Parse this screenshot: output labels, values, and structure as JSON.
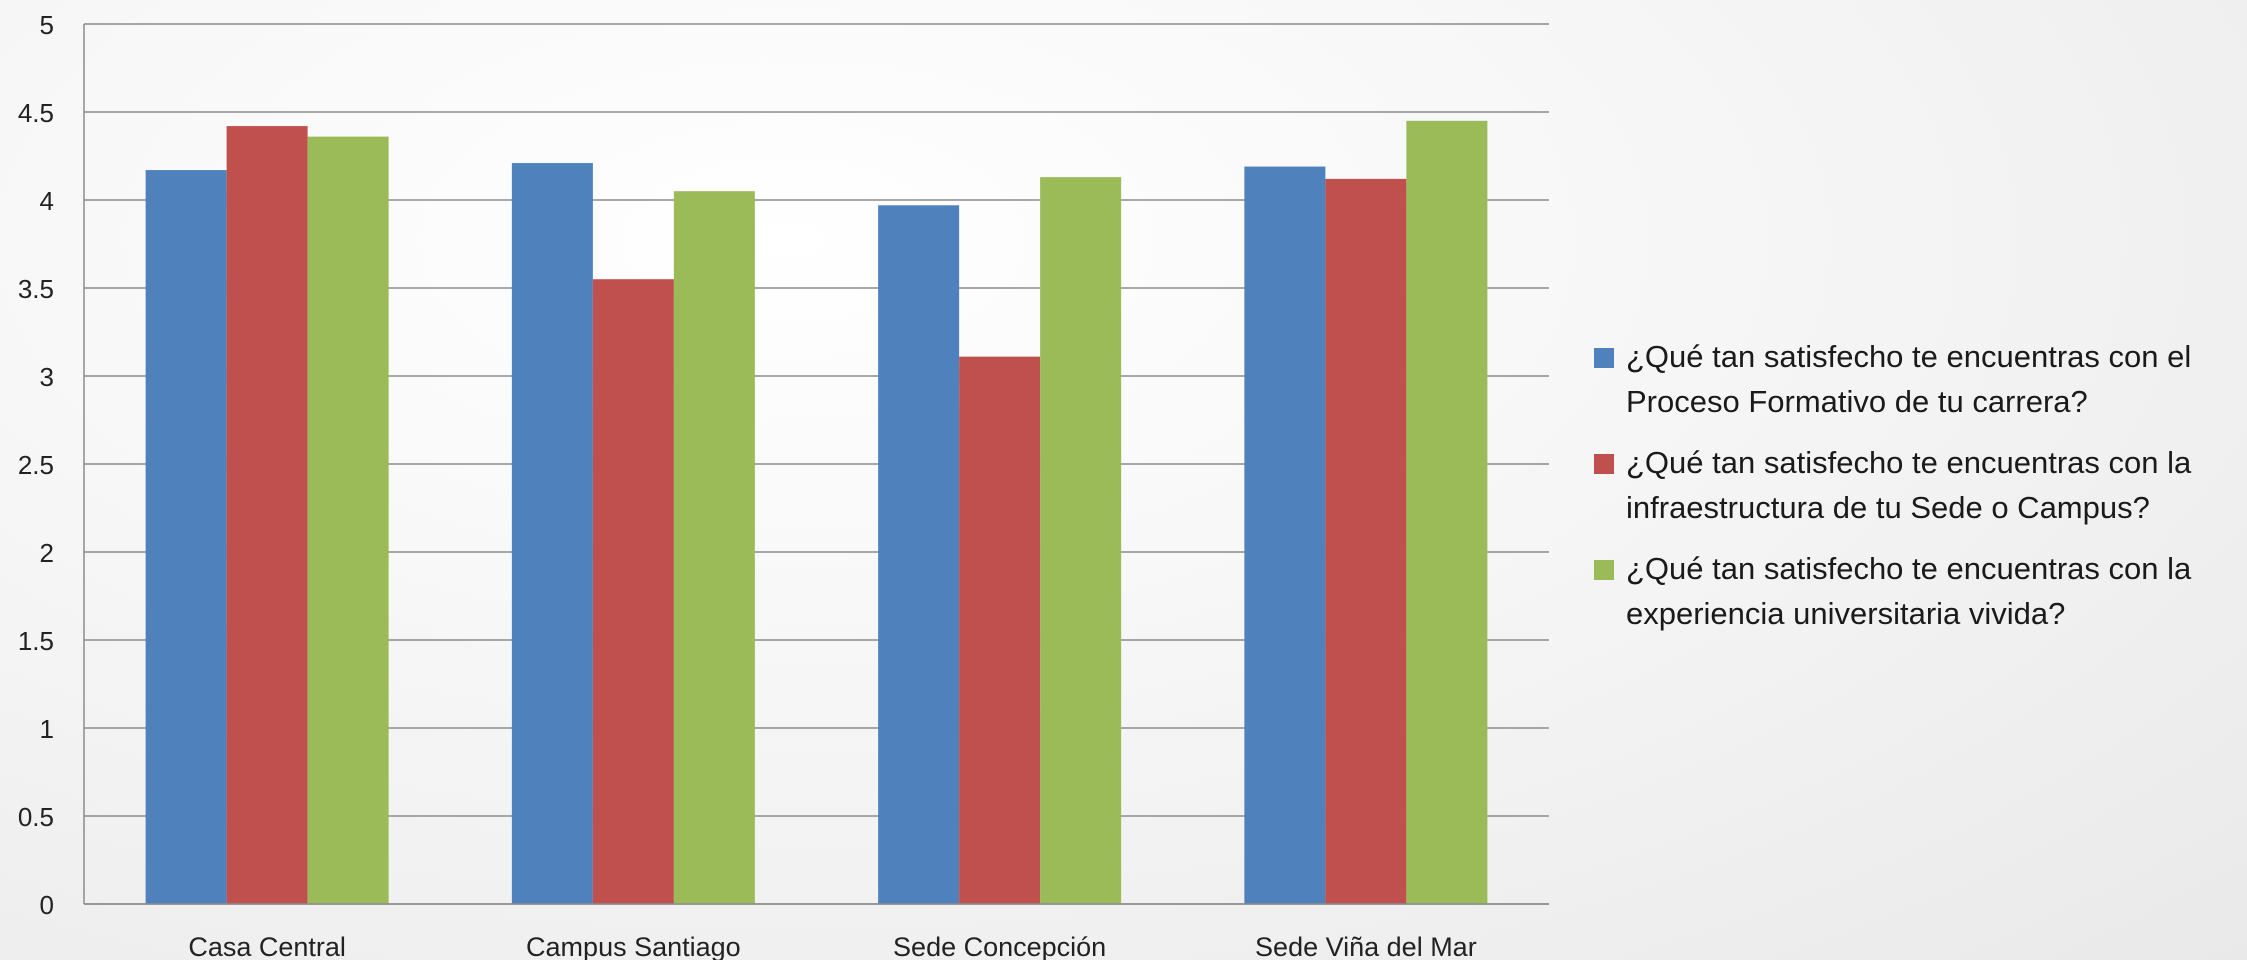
{
  "chart_data": {
    "type": "bar",
    "title": "",
    "xlabel": "",
    "ylabel": "",
    "ylim": [
      0,
      5
    ],
    "yticks": [
      "0",
      "0.5",
      "1",
      "1.5",
      "2",
      "2.5",
      "3",
      "3.5",
      "4",
      "4.5",
      "5"
    ],
    "grid": true,
    "legend_position": "right",
    "categories": [
      "Casa Central",
      "Campus Santiago",
      "Sede Concepción",
      "Sede Viña del Mar"
    ],
    "series": [
      {
        "name": "¿Qué tan satisfecho te encuentras con el Proceso Formativo de tu carrera?",
        "color": "#4F81BD",
        "values": [
          4.17,
          4.21,
          3.97,
          4.19
        ]
      },
      {
        "name": "¿Qué tan satisfecho te encuentras con la infraestructura de tu Sede o Campus?",
        "color": "#C0504D",
        "values": [
          4.42,
          3.55,
          3.11,
          4.12
        ]
      },
      {
        "name": "¿Qué tan satisfecho te encuentras con la experiencia universitaria vivida?",
        "color": "#9BBB59",
        "values": [
          4.36,
          4.05,
          4.13,
          4.45
        ]
      }
    ]
  }
}
